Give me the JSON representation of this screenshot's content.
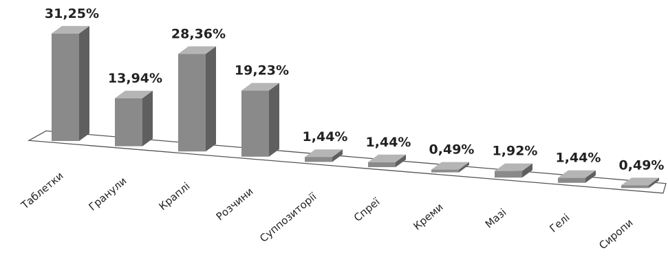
{
  "chart_data": {
    "type": "bar",
    "title": "",
    "xlabel": "",
    "ylabel": "",
    "ylim": [
      0,
      32
    ],
    "grid": false,
    "legend": "none",
    "categories": [
      "Таблетки",
      "Гранули",
      "Краплі",
      "Розчини",
      "Суппозиторії",
      "Спреї",
      "Креми",
      "Мазі",
      "Гелі",
      "Сиропи"
    ],
    "values": [
      31.25,
      13.94,
      28.36,
      19.23,
      1.44,
      1.44,
      0.49,
      1.92,
      1.44,
      0.49
    ],
    "value_labels": [
      "31,25%",
      "13,94%",
      "28,36%",
      "19,23%",
      "1,44%",
      "1,44%",
      "0,49%",
      "1,92%",
      "1,44%",
      "0,49%"
    ],
    "colors": {
      "bar_front": "#8a8a8a",
      "bar_side": "#5f5f5f",
      "bar_top": "#b5b5b5",
      "floor_line": "#555555",
      "text": "#222222"
    }
  }
}
